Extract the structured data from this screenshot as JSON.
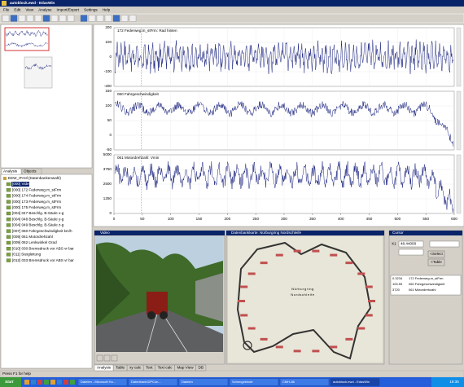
{
  "window": {
    "title": "autoblock.ewd - EdasWin"
  },
  "menu": [
    "File",
    "Edit",
    "View",
    "Analyse",
    "Import/Export",
    "Settings",
    "Help"
  ],
  "left_panel": {
    "tabs": [
      "Analysis",
      "Objects"
    ],
    "tree_root": "EEW_rFrntl (Datenbankenwahl)",
    "tree": [
      "[000] Video",
      "[000] 172 Federweg.m_stFrm",
      "[000] 174 Federweg.m_stFrm",
      "[000] 173 Federweg.m_stFrm",
      "[000] 175 Federweg.m_stFrm",
      "[004] 047 Beschlg. B-Säule x-g",
      "[004] 048 Beschlg. B-Säule y-g",
      "[004] 049 Beschlg. B-Säule z-g",
      "[007] 060 Fahrgeschwindigkeit km/h",
      "[009] 061 Motordrehzahl",
      "[009] 062 Lenkwinkel Grad",
      "[010] 030 Bremsdruck vor ABS vr bar",
      "[011] Steigleitung",
      "[012] 033 Bremsdruck vor ABS vr bar"
    ]
  },
  "charts": [
    {
      "title": "172 Federweg.m_stFrm: Rad hinten",
      "ylim": [
        -200,
        200
      ],
      "yticks": [
        200,
        100,
        0,
        -100,
        -200
      ]
    },
    {
      "title": "060 Fahrgeschwindigkeit",
      "ylim": [
        -50,
        150
      ],
      "yticks": [
        150,
        100,
        50,
        0,
        -50
      ]
    },
    {
      "title": "061 Motordrehzahl: Vmin",
      "ylim": [
        0,
        5000
      ],
      "yticks": [
        5000,
        3750,
        2500,
        1250,
        0
      ]
    }
  ],
  "xlim": [
    0,
    600
  ],
  "xticks": [
    0,
    50,
    100,
    150,
    200,
    250,
    300,
    350,
    400,
    450,
    500,
    550,
    600
  ],
  "video": {
    "title": "Video"
  },
  "map": {
    "title": "Datenbankkarte: Nürburgring Nordschleife",
    "label_lines": [
      "Nürburgring",
      "Nordschleife"
    ]
  },
  "cursor": {
    "title": "Cursor",
    "x_label": "X1",
    "x_value": "48.44000",
    "buttons": [
      "<Select",
      "<Table"
    ],
    "rows": [
      [
        "0.3234",
        "172 Federweg.m_stFrm"
      ],
      [
        "100.59",
        "060 Fahrgeschwindigkeit"
      ],
      [
        "3720",
        "061 Motordrehzahl"
      ]
    ]
  },
  "tabs": [
    "Analysis",
    "Table",
    "xy calc",
    "Text",
    "Text calc",
    "Map View",
    "DB"
  ],
  "status": "Press F1 for help",
  "taskbar": {
    "start": "Start",
    "items": [
      "Dateien - Microsoft Ho...",
      "Datenbank\\DPCon...",
      "Dateien",
      "Schengebinde",
      "CMH-86",
      "autoblock.ewd - EdasWin"
    ],
    "clock": "19:35"
  }
}
